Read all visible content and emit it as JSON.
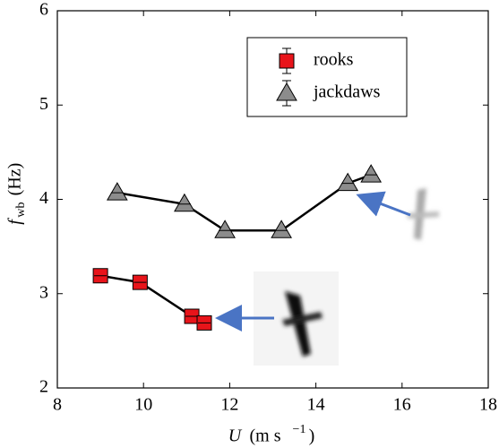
{
  "chart_data": {
    "type": "line",
    "x_label": {
      "symbol": "U",
      "unit": "(m s",
      "exponent": "−1",
      "close": ")"
    },
    "y_label": {
      "symbol": "f",
      "subscript": "wb",
      "unit": "(Hz)"
    },
    "series": [
      {
        "name": "rooks",
        "color": "#e8141a",
        "marker": "square",
        "x": [
          9.0,
          9.92,
          11.12,
          11.41
        ],
        "values": [
          3.19,
          3.12,
          2.76,
          2.69
        ]
      },
      {
        "name": "jackdaws",
        "color": "#8c8c8c",
        "marker": "triangle",
        "x": [
          9.39,
          10.95,
          11.89,
          13.2,
          14.74,
          15.28
        ],
        "values": [
          4.07,
          3.95,
          3.67,
          3.67,
          4.17,
          4.26
        ]
      }
    ],
    "xlim": [
      8,
      18
    ],
    "xticks": [
      8,
      10,
      12,
      14,
      16,
      18
    ],
    "ylim": [
      2,
      6
    ],
    "yticks": [
      2,
      3,
      4,
      5,
      6
    ],
    "grid": false,
    "legend": "upper right"
  }
}
